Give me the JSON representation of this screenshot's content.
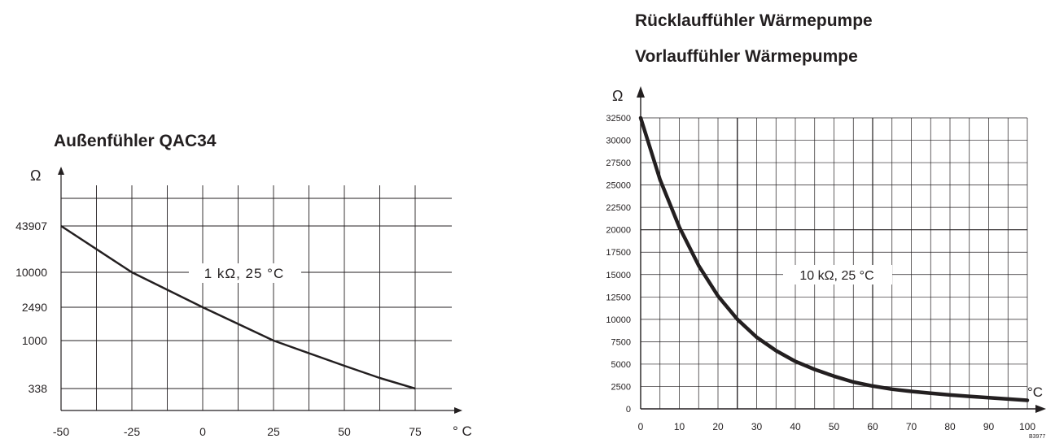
{
  "chart_data": [
    {
      "type": "line",
      "title": "Außenfühler QAC34",
      "xlabel": "° C",
      "ylabel": "Ω",
      "annotation": "1 kΩ, 25 °C",
      "x_ticks": [
        -50,
        -25,
        0,
        25,
        50,
        75
      ],
      "y_ticks": [
        "43907",
        "10000",
        "2490",
        "1000",
        "338"
      ],
      "x": [
        -50,
        -25,
        0,
        25,
        50,
        75
      ],
      "y": [
        43907,
        10000,
        2490,
        1000,
        600,
        338
      ],
      "xlim": [
        -50,
        75
      ],
      "grid": true
    },
    {
      "type": "line",
      "titles": [
        "Rücklauffühler Wärmepumpe",
        "Vorlauffühler Wärmepumpe"
      ],
      "xlabel": "°C",
      "ylabel": "Ω",
      "annotation": "10 kΩ, 25 °C",
      "x_ticks": [
        0,
        10,
        20,
        30,
        40,
        50,
        60,
        70,
        80,
        90,
        100
      ],
      "y_ticks": [
        0,
        2500,
        5000,
        7500,
        10000,
        12500,
        15000,
        17500,
        20000,
        22500,
        25000,
        27500,
        30000,
        32500
      ],
      "x": [
        0,
        5,
        10,
        15,
        20,
        25,
        30,
        35,
        40,
        45,
        50,
        55,
        60,
        65,
        70,
        75,
        80,
        85,
        90,
        95,
        100
      ],
      "y": [
        32500,
        25600,
        20300,
        16000,
        12600,
        10000,
        8000,
        6500,
        5300,
        4400,
        3650,
        3000,
        2550,
        2200,
        1950,
        1750,
        1550,
        1400,
        1250,
        1100,
        950
      ],
      "xlim": [
        0,
        100
      ],
      "ylim": [
        0,
        32500
      ],
      "grid": true
    }
  ],
  "figure_code": "B3977"
}
